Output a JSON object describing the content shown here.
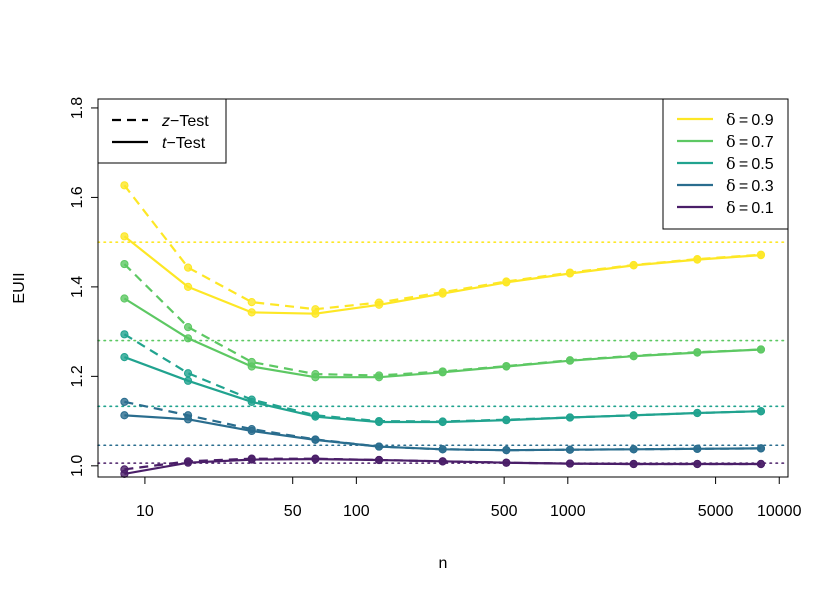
{
  "chart_data": {
    "type": "line",
    "xlabel": "n",
    "ylabel": "EUII",
    "x_scale": "log",
    "xlim": [
      6,
      11000
    ],
    "ylim": [
      0.975,
      1.82
    ],
    "xticks": [
      10,
      50,
      100,
      500,
      1000,
      5000,
      10000
    ],
    "xtick_labels": [
      "10",
      "50",
      "100",
      "500",
      "1000",
      "5000",
      "10000"
    ],
    "yticks": [
      1.0,
      1.2,
      1.4,
      1.6,
      1.8
    ],
    "ytick_labels": [
      "1.0",
      "1.2",
      "1.4",
      "1.6",
      "1.8"
    ],
    "grid": false,
    "x": [
      8,
      16,
      32,
      64,
      128,
      256,
      512,
      1024,
      2048,
      4096,
      8192
    ],
    "legend_tests": {
      "placement": "top-left",
      "entries": [
        {
          "test": "z",
          "symbol": "z",
          "label": "−Test",
          "dash": "dashed"
        },
        {
          "test": "t",
          "symbol": "t",
          "label": "−Test",
          "dash": "solid"
        }
      ]
    },
    "legend_deltas": {
      "placement": "top-right",
      "order": [
        0,
        1,
        2,
        3,
        4
      ]
    },
    "series": [
      {
        "delta": 0.9,
        "symbol": "δ",
        "label": " = 0.9",
        "color": "#FDE725",
        "reference": 1.5,
        "z": [
          1.627,
          1.443,
          1.366,
          1.35,
          1.365,
          1.388,
          1.412,
          1.432,
          1.449,
          1.462,
          1.472
        ],
        "t": [
          1.513,
          1.4,
          1.343,
          1.34,
          1.36,
          1.385,
          1.41,
          1.43,
          1.448,
          1.461,
          1.471
        ]
      },
      {
        "delta": 0.7,
        "symbol": "δ",
        "label": " = 0.7",
        "color": "#5DC863",
        "reference": 1.28,
        "z": [
          1.451,
          1.31,
          1.232,
          1.205,
          1.202,
          1.211,
          1.223,
          1.236,
          1.246,
          1.254,
          1.26
        ],
        "t": [
          1.374,
          1.285,
          1.222,
          1.198,
          1.198,
          1.209,
          1.222,
          1.235,
          1.245,
          1.253,
          1.26
        ]
      },
      {
        "delta": 0.5,
        "symbol": "δ",
        "label": " = 0.5",
        "color": "#21A38F",
        "reference": 1.133,
        "z": [
          1.294,
          1.207,
          1.148,
          1.113,
          1.1,
          1.099,
          1.103,
          1.108,
          1.113,
          1.118,
          1.122
        ],
        "t": [
          1.243,
          1.19,
          1.143,
          1.11,
          1.098,
          1.098,
          1.102,
          1.108,
          1.113,
          1.118,
          1.122
        ]
      },
      {
        "delta": 0.3,
        "symbol": "δ",
        "label": " = 0.3",
        "color": "#2A6D8E",
        "reference": 1.046,
        "z": [
          1.143,
          1.113,
          1.082,
          1.059,
          1.043,
          1.037,
          1.035,
          1.036,
          1.037,
          1.038,
          1.039
        ],
        "t": [
          1.113,
          1.104,
          1.078,
          1.058,
          1.043,
          1.037,
          1.035,
          1.036,
          1.037,
          1.038,
          1.039
        ]
      },
      {
        "delta": 0.1,
        "symbol": "δ",
        "label": " = 0.1",
        "color": "#4A1E68",
        "reference": 1.006,
        "z": [
          0.992,
          1.01,
          1.016,
          1.016,
          1.013,
          1.01,
          1.007,
          1.005,
          1.004,
          1.004,
          1.004
        ],
        "t": [
          0.982,
          1.007,
          1.014,
          1.015,
          1.013,
          1.01,
          1.007,
          1.005,
          1.004,
          1.004,
          1.004
        ]
      }
    ]
  }
}
